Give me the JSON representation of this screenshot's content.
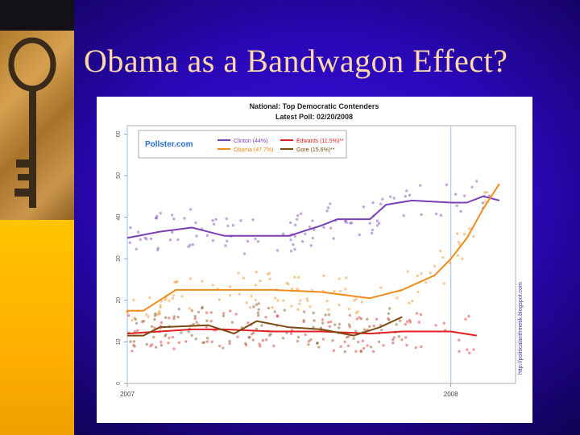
{
  "slide": {
    "title": "Obama as a Bandwagon Effect?"
  },
  "colors": {
    "background": "#2a08b8",
    "title": "#ffd8a8",
    "clinton": "#7b3fb5",
    "obama": "#f08c1e",
    "edwards": "#e02020",
    "gore": "#7a4a10"
  },
  "chart_data": {
    "type": "line",
    "title": "National: Top Democratic Contenders",
    "subtitle": "Latest Poll: 02/20/2008",
    "logo": "Pollster.com",
    "watermark": "http://politicalarithmetik.blogspot.com",
    "x_tick_labels": [
      "2007",
      "2008"
    ],
    "x_tick_values": [
      2007.0,
      2008.0
    ],
    "xlim": [
      2007.0,
      2008.2
    ],
    "y_tick_labels": [
      "0",
      "10",
      "20",
      "30",
      "40",
      "50",
      "60"
    ],
    "ylim": [
      0,
      62
    ],
    "grid": false,
    "legend_position": "top",
    "series": [
      {
        "name": "Clinton (44%)",
        "color": "#7b3fb5",
        "x": [
          2007.0,
          2007.1,
          2007.2,
          2007.3,
          2007.4,
          2007.5,
          2007.6,
          2007.65,
          2007.75,
          2007.8,
          2007.88,
          2008.0,
          2008.05,
          2008.1,
          2008.15
        ],
        "values": [
          35,
          36.5,
          37.5,
          35.5,
          35.5,
          35.5,
          38,
          39.5,
          39.5,
          43,
          44,
          43.5,
          43.5,
          45,
          44
        ]
      },
      {
        "name": "Obama (47.7%)",
        "color": "#f08c1e",
        "x": [
          2007.0,
          2007.05,
          2007.1,
          2007.15,
          2007.3,
          2007.45,
          2007.6,
          2007.75,
          2007.85,
          2007.95,
          2008.0,
          2008.05,
          2008.1,
          2008.15
        ],
        "values": [
          17.5,
          17.5,
          20,
          22.5,
          22.5,
          22.5,
          22,
          20.5,
          22.5,
          26,
          30,
          35,
          42,
          48
        ]
      },
      {
        "name": "Edwards (11.5%)**",
        "color": "#e02020",
        "x": [
          2007.0,
          2007.1,
          2007.2,
          2007.3,
          2007.45,
          2007.6,
          2007.75,
          2007.85,
          2008.0,
          2008.08
        ],
        "values": [
          12,
          12.5,
          13,
          13,
          12.5,
          12.5,
          12,
          12.5,
          12.5,
          11.5
        ]
      },
      {
        "name": "Gore (15.6%)**",
        "color": "#7a4a10",
        "x": [
          2007.0,
          2007.05,
          2007.1,
          2007.25,
          2007.33,
          2007.4,
          2007.5,
          2007.6,
          2007.7,
          2007.78,
          2007.85
        ],
        "values": [
          11.5,
          11.5,
          13.5,
          14,
          12,
          15,
          13.5,
          13,
          11.5,
          13.5,
          16
        ]
      }
    ]
  }
}
